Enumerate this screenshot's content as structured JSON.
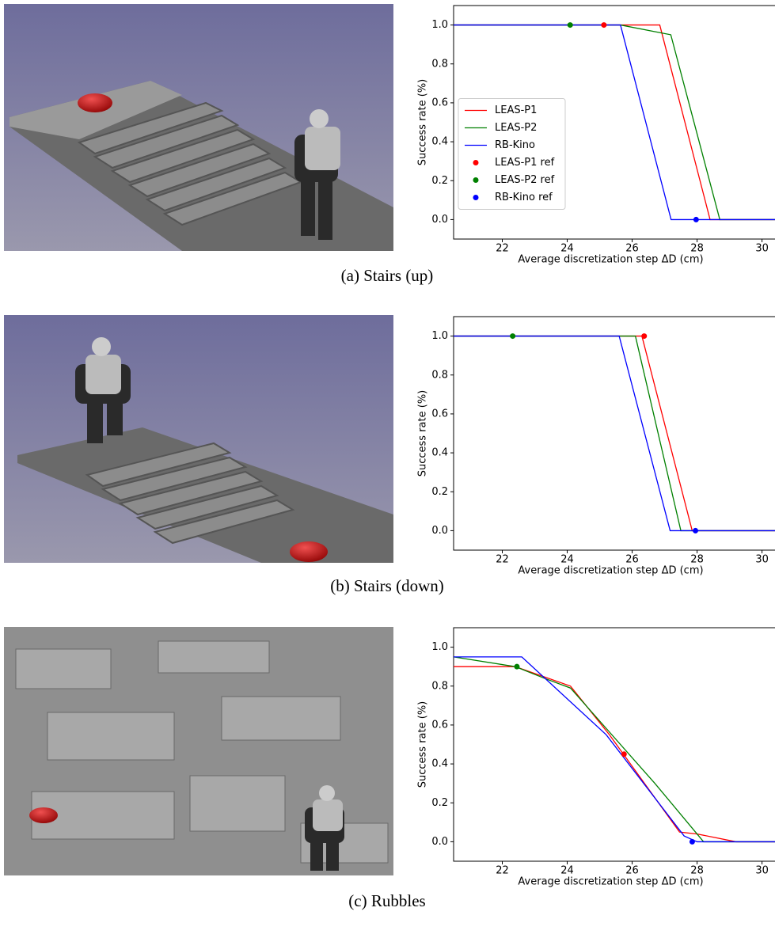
{
  "chart_data": [
    {
      "type": "line",
      "caption": "(a) Stairs (up)",
      "xlabel": "Average discretization step ΔD (cm)",
      "ylabel": "Success rate (%)",
      "xlim": [
        20.5,
        30.4
      ],
      "xticks": [
        22,
        24,
        26,
        28,
        30
      ],
      "ylim": [
        -0.1,
        1.1
      ],
      "yticks": [
        {
          "value": 0,
          "label": "0.0"
        },
        0.2,
        0.4,
        0.6,
        0.8,
        {
          "value": 1,
          "label": "1.0"
        }
      ],
      "legend": "center left",
      "series": [
        {
          "name": "LEAS-P1",
          "color": "#ff0000",
          "kind": "line",
          "x": [
            20.5,
            26.85,
            28.4,
            30.4
          ],
          "values": [
            1,
            1,
            0,
            0
          ]
        },
        {
          "name": "LEAS-P2",
          "color": "#008000",
          "kind": "line",
          "x": [
            20.5,
            25.64,
            27.19,
            28.7,
            30.4
          ],
          "values": [
            1,
            1,
            0.95,
            0,
            0
          ]
        },
        {
          "name": "RB-Kino",
          "color": "#0000ff",
          "kind": "line",
          "x": [
            20.5,
            25.64,
            27.2,
            30.4
          ],
          "values": [
            1,
            1,
            0,
            0
          ]
        },
        {
          "name": "LEAS-P1 ref",
          "color": "#ff0000",
          "kind": "scatter",
          "x": [
            25.13
          ],
          "values": [
            1
          ]
        },
        {
          "name": "LEAS-P2 ref",
          "color": "#008000",
          "kind": "scatter",
          "x": [
            24.09
          ],
          "values": [
            1
          ]
        },
        {
          "name": "RB-Kino ref",
          "color": "#0000ff",
          "kind": "scatter",
          "x": [
            27.97
          ],
          "values": [
            0
          ]
        }
      ]
    },
    {
      "type": "line",
      "caption": "(b) Stairs (down)",
      "xlabel": "Average discretization step ΔD (cm)",
      "ylabel": "Success rate (%)",
      "xlim": [
        20.5,
        30.4
      ],
      "xticks": [
        22,
        24,
        26,
        28,
        30
      ],
      "ylim": [
        -0.1,
        1.1
      ],
      "yticks": [
        {
          "value": 0,
          "label": "0.0"
        },
        0.2,
        0.4,
        0.6,
        0.8,
        {
          "value": 1,
          "label": "1.0"
        }
      ],
      "series": [
        {
          "color": "#ff0000",
          "kind": "line",
          "x": [
            20.5,
            26.3,
            27.85,
            30.4
          ],
          "values": [
            1,
            1,
            0,
            0
          ]
        },
        {
          "color": "#008000",
          "kind": "line",
          "x": [
            20.5,
            26.1,
            27.5,
            30.4
          ],
          "values": [
            1,
            1,
            0,
            0
          ]
        },
        {
          "color": "#0000ff",
          "kind": "line",
          "x": [
            20.5,
            25.6,
            27.17,
            30.4
          ],
          "values": [
            1,
            1,
            0,
            0
          ]
        },
        {
          "color": "#ff0000",
          "kind": "scatter",
          "x": [
            26.37
          ],
          "values": [
            1
          ]
        },
        {
          "color": "#008000",
          "kind": "scatter",
          "x": [
            22.32
          ],
          "values": [
            1
          ]
        },
        {
          "color": "#0000ff",
          "kind": "scatter",
          "x": [
            27.95
          ],
          "values": [
            0
          ]
        }
      ]
    },
    {
      "type": "line",
      "caption": "(c) Rubbles",
      "xlabel": "Average discretization step ΔD (cm)",
      "ylabel": "Success rate (%)",
      "xlim": [
        20.5,
        30.4
      ],
      "xticks": [
        22,
        24,
        26,
        28,
        30
      ],
      "ylim": [
        -0.1,
        1.1
      ],
      "yticks": [
        {
          "value": 0,
          "label": "0.0"
        },
        0.2,
        0.4,
        0.6,
        0.8,
        {
          "value": 1,
          "label": "1.0"
        }
      ],
      "series": [
        {
          "color": "#ff0000",
          "kind": "line",
          "x": [
            20.5,
            22.4,
            24.1,
            25.3,
            27.46,
            28.0,
            29.2,
            30.4
          ],
          "values": [
            0.9,
            0.9,
            0.8,
            0.55,
            0.05,
            0.04,
            0,
            0
          ]
        },
        {
          "color": "#008000",
          "kind": "line",
          "x": [
            20.5,
            22.4,
            23.3,
            24.1,
            26.7,
            28.2,
            30.4
          ],
          "values": [
            0.95,
            0.9,
            0.84,
            0.79,
            0.3,
            0,
            0
          ]
        },
        {
          "color": "#0000ff",
          "kind": "line",
          "x": [
            20.5,
            22.6,
            25.2,
            27.6,
            28.0,
            30.4
          ],
          "values": [
            0.95,
            0.95,
            0.55,
            0.03,
            0,
            0
          ]
        },
        {
          "color": "#ff0000",
          "kind": "scatter",
          "x": [
            25.75
          ],
          "values": [
            0.45
          ]
        },
        {
          "color": "#008000",
          "kind": "scatter",
          "x": [
            22.45
          ],
          "values": [
            0.9
          ]
        },
        {
          "color": "#0000ff",
          "kind": "scatter",
          "x": [
            27.85
          ],
          "values": [
            0
          ]
        }
      ]
    }
  ]
}
